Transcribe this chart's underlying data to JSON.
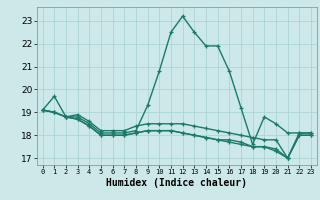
{
  "xlabel": "Humidex (Indice chaleur)",
  "ylabel": "",
  "background_color": "#cce8e8",
  "grid_color": "#add4d4",
  "line_color": "#1a7a6a",
  "xlim": [
    -0.5,
    23.5
  ],
  "ylim": [
    16.7,
    23.6
  ],
  "yticks": [
    17,
    18,
    19,
    20,
    21,
    22,
    23
  ],
  "xticks": [
    0,
    1,
    2,
    3,
    4,
    5,
    6,
    7,
    8,
    9,
    10,
    11,
    12,
    13,
    14,
    15,
    16,
    17,
    18,
    19,
    20,
    21,
    22,
    23
  ],
  "series": [
    [
      19.1,
      19.7,
      18.8,
      18.8,
      18.5,
      18.1,
      18.1,
      18.1,
      18.2,
      19.3,
      20.8,
      22.5,
      23.2,
      22.5,
      21.9,
      21.9,
      20.8,
      19.2,
      17.6,
      18.8,
      18.5,
      18.1,
      18.1,
      18.1
    ],
    [
      19.1,
      19.0,
      18.8,
      18.9,
      18.6,
      18.2,
      18.2,
      18.2,
      18.4,
      18.5,
      18.5,
      18.5,
      18.5,
      18.4,
      18.3,
      18.2,
      18.1,
      18.0,
      17.9,
      17.8,
      17.8,
      17.0,
      18.1,
      18.1
    ],
    [
      19.1,
      19.0,
      18.8,
      18.7,
      18.4,
      18.0,
      18.0,
      18.0,
      18.1,
      18.2,
      18.2,
      18.2,
      18.1,
      18.0,
      17.9,
      17.8,
      17.8,
      17.7,
      17.5,
      17.5,
      17.4,
      17.0,
      18.0,
      18.0
    ],
    [
      19.1,
      19.0,
      18.8,
      18.7,
      18.4,
      18.0,
      18.0,
      18.0,
      18.1,
      18.2,
      18.2,
      18.2,
      18.1,
      18.0,
      17.9,
      17.8,
      17.7,
      17.6,
      17.5,
      17.5,
      17.3,
      17.0,
      18.0,
      18.0
    ]
  ]
}
